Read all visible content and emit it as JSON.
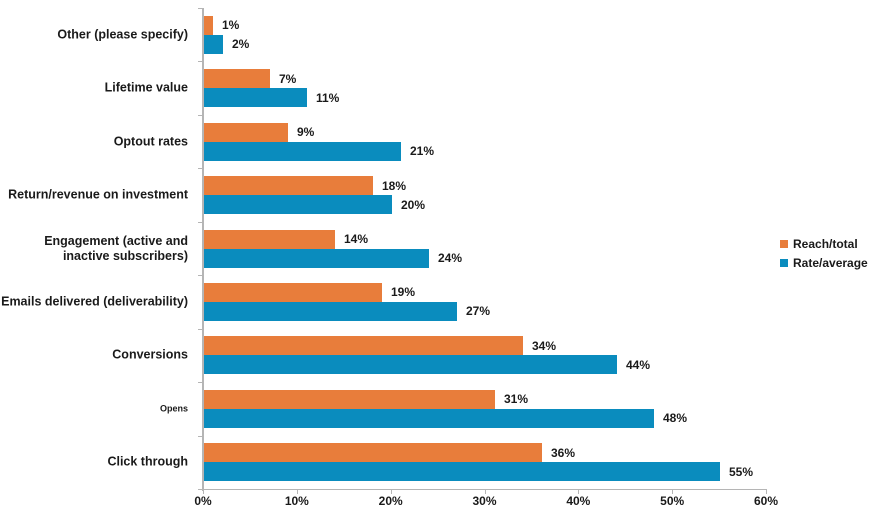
{
  "chart_data": {
    "type": "bar",
    "orientation": "horizontal",
    "title": "",
    "categories": [
      "Other (please specify)",
      "Lifetime value",
      "Optout rates",
      "Return/revenue on investment",
      "Engagement (active and\ninactive subscribers)",
      "Emails delivered (deliverability)",
      "Conversions",
      "Opens",
      "Click through"
    ],
    "series": [
      {
        "name": "Reach/total",
        "color": "#e87d3b",
        "values": [
          1,
          7,
          9,
          18,
          14,
          19,
          34,
          31,
          36
        ]
      },
      {
        "name": "Rate/average",
        "color": "#0a8cbe",
        "values": [
          2,
          11,
          21,
          20,
          24,
          27,
          44,
          48,
          55
        ]
      }
    ],
    "value_labels_shown": true,
    "value_suffix": "%",
    "xlim": [
      0,
      60
    ],
    "x_ticks": [
      "0%",
      "10%",
      "20%",
      "30%",
      "40%",
      "50%",
      "60%"
    ],
    "grid": false,
    "legend_position": "middle-right",
    "small_font_categories": [
      "Opens"
    ],
    "axis_color": "#b5b5b5",
    "text_color": "#1a1a1a",
    "background_color": "#ffffff"
  }
}
